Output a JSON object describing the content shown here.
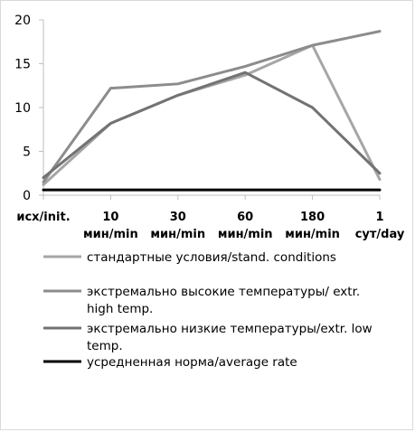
{
  "chart_data": {
    "type": "line",
    "categories": [
      [
        "исх/init."
      ],
      [
        "10",
        "мин/min"
      ],
      [
        "30",
        "мин/min"
      ],
      [
        "60",
        "мин/min"
      ],
      [
        "180",
        "мин/min"
      ],
      [
        "1",
        "сут/day"
      ]
    ],
    "ylim": [
      0,
      20
    ],
    "yticks": [
      0,
      5,
      10,
      15,
      20
    ],
    "grid": "horizontal-none",
    "legend_position": "bottom",
    "series": [
      {
        "name": "стандартные условия/stand. conditions",
        "legend_lines": [
          "стандартные условия/stand. conditions"
        ],
        "color": "#a6a6a6",
        "values": [
          1.2,
          8.2,
          11.4,
          13.7,
          17.1,
          1.8
        ]
      },
      {
        "name": "экстремально высокие температуры/ extr. high temp.",
        "legend_lines": [
          "экстремально высокие температуры/ extr.",
          "high temp."
        ],
        "color": "#8c8c8c",
        "values": [
          1.5,
          12.2,
          12.7,
          14.7,
          17.1,
          18.7
        ]
      },
      {
        "name": "экстремально низкие температуры/extr. low temp.",
        "legend_lines": [
          "экстремально низкие температуры/extr. low",
          "temp."
        ],
        "color": "#737373",
        "values": [
          2.0,
          8.2,
          11.4,
          14.0,
          10.0,
          2.5
        ]
      },
      {
        "name": "усредненная норма/average rate",
        "legend_lines": [
          "усредненная норма/average rate"
        ],
        "color": "#000000",
        "values": [
          0.6,
          0.6,
          0.6,
          0.6,
          0.6,
          0.6
        ]
      }
    ]
  }
}
